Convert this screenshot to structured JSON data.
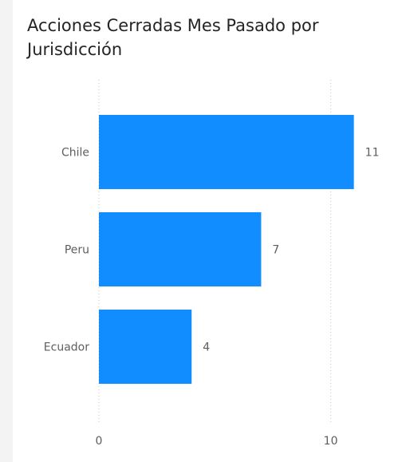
{
  "chart_data": {
    "type": "bar",
    "orientation": "horizontal",
    "title": "Acciones Cerradas Mes Pasado por Jurisdicción",
    "categories": [
      "Chile",
      "Peru",
      "Ecuador"
    ],
    "values": [
      11,
      7,
      4
    ],
    "data_labels": [
      "11",
      "7",
      "4"
    ],
    "xticks": [
      0,
      10
    ],
    "xtick_labels": [
      "0",
      "10"
    ],
    "xlim": [
      0,
      11.7
    ],
    "grid": "vertical dotted",
    "bar_color": "#118dff"
  }
}
